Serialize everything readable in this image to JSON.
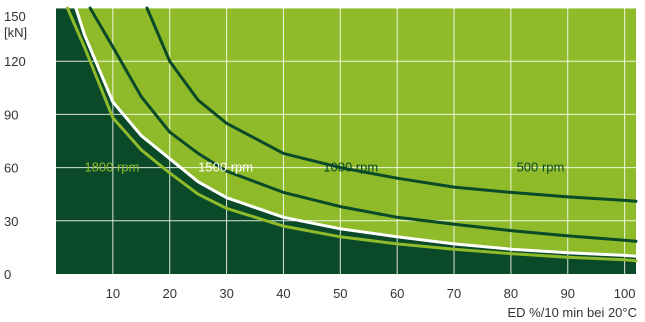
{
  "chart_data": {
    "type": "line",
    "title": "",
    "xlabel": "ED %/10 min bei 20°C",
    "ylabel": "",
    "y_unit": "[kN]",
    "xlim": [
      0,
      102
    ],
    "ylim": [
      0,
      150
    ],
    "x_ticks": [
      10,
      20,
      30,
      40,
      50,
      60,
      70,
      80,
      90,
      100
    ],
    "y_ticks": [
      0,
      30,
      60,
      90,
      120,
      150
    ],
    "grid": true,
    "legend": "none",
    "colors": {
      "plot_background": "#8fbb2a",
      "lower_fill": "#0a4a28",
      "grid": "#ffffff",
      "line_dark": "#0a4a28",
      "line_white": "#ffffff",
      "line_lime": "#8fbb2a"
    },
    "series": [
      {
        "name": "500 rpm",
        "color": "#0a4a28",
        "x": [
          16,
          20,
          25,
          30,
          40,
          50,
          60,
          70,
          80,
          90,
          100,
          102
        ],
        "y": [
          150,
          120,
          98,
          85,
          68,
          60,
          54,
          49,
          46,
          43.5,
          41.5,
          41
        ]
      },
      {
        "name": "1000 rpm",
        "color": "#0a4a28",
        "x": [
          6,
          10,
          15,
          20,
          25,
          30,
          40,
          50,
          60,
          70,
          80,
          90,
          100,
          102
        ],
        "y": [
          150,
          128,
          100,
          80,
          68,
          58,
          46,
          38,
          32,
          28,
          24.5,
          21.5,
          19,
          18.5
        ]
      },
      {
        "name": "1500 rpm",
        "color": "#ffffff",
        "x": [
          3.5,
          5,
          10,
          15,
          20,
          25,
          30,
          40,
          50,
          60,
          70,
          80,
          90,
          100,
          102
        ],
        "y": [
          150,
          135,
          97,
          78,
          65,
          52,
          43,
          32,
          25.5,
          21,
          17,
          14,
          12,
          10.5,
          10
        ]
      },
      {
        "name": "1800 rpm",
        "color": "#8fbb2a",
        "x": [
          2,
          5,
          10,
          15,
          20,
          25,
          30,
          40,
          50,
          60,
          70,
          80,
          90,
          100,
          102
        ],
        "y": [
          150,
          128,
          88,
          70,
          57,
          45,
          37,
          27,
          21,
          17,
          14,
          11.5,
          9.5,
          8,
          7.5
        ]
      }
    ],
    "annotations": [
      {
        "text": "1800 rpm",
        "x": 5,
        "y": 60,
        "color": "#8fbb2a"
      },
      {
        "text": "1500 rpm",
        "x": 25,
        "y": 60,
        "color": "#ffffff"
      },
      {
        "text": "1000 rpm",
        "x": 47,
        "y": 60,
        "color": "#0a4a28"
      },
      {
        "text": "500 rpm",
        "x": 81,
        "y": 60,
        "color": "#0a4a28"
      }
    ]
  }
}
